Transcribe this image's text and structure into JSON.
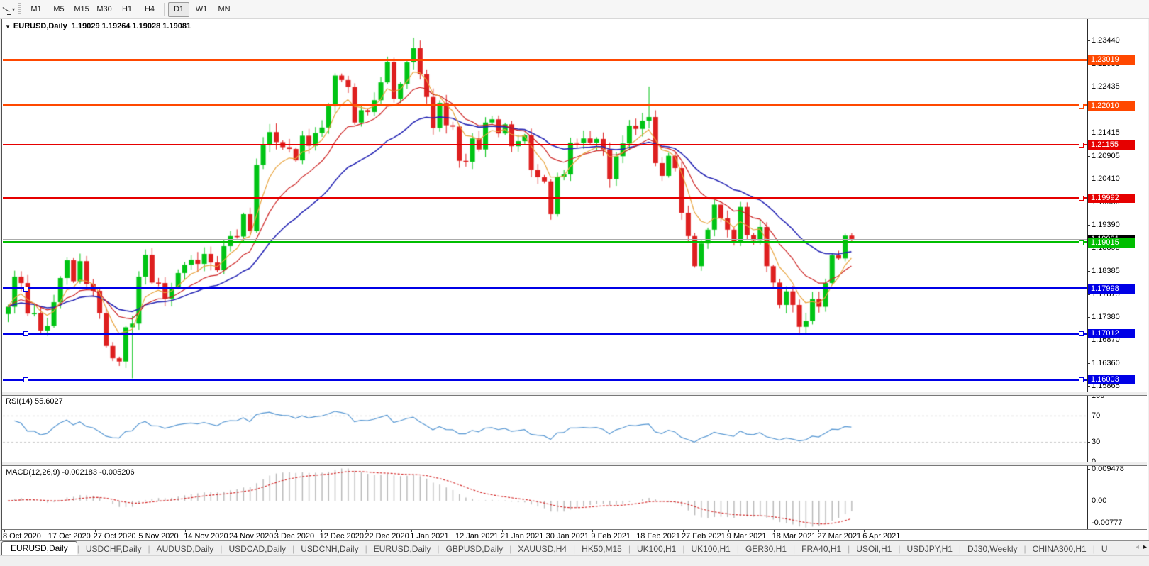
{
  "toolbar": {
    "tool_icon": "crosshair-cursor",
    "timeframes": [
      "M1",
      "M5",
      "M15",
      "M30",
      "H1",
      "H4",
      "D1",
      "W1",
      "MN"
    ],
    "active_timeframe": "D1"
  },
  "chart": {
    "title": "EURUSD,Daily",
    "ohlc": "1.19029 1.19264 1.19028 1.19081",
    "collapse_icon": "▼",
    "price_axis_ticks": [
      "1.23440",
      "1.22930",
      "1.22435",
      "1.21925",
      "1.21415",
      "1.20905",
      "1.20410",
      "1.19900",
      "1.19390",
      "1.18895",
      "1.18385",
      "1.17875",
      "1.17380",
      "1.16870",
      "1.16360",
      "1.15865"
    ],
    "hlines": [
      {
        "label": "1.23019",
        "price": 1.23019,
        "color": "#FF4800",
        "thickness": 3,
        "handles": []
      },
      {
        "label": "1.22010",
        "price": 1.2201,
        "color": "#FF4800",
        "thickness": 3,
        "handles": [
          "right"
        ]
      },
      {
        "label": "1.21155",
        "price": 1.21155,
        "color": "#E60000",
        "thickness": 2,
        "handles": [
          "right"
        ]
      },
      {
        "label": "1.19992",
        "price": 1.19992,
        "color": "#E60000",
        "thickness": 2,
        "handles": [
          "right"
        ]
      },
      {
        "label": "1.19015",
        "price": 1.19015,
        "color": "#00BE00",
        "thickness": 3,
        "handles": [
          "right"
        ]
      },
      {
        "label": "1.17998",
        "price": 1.17998,
        "color": "#0000E6",
        "thickness": 3,
        "handles": [
          "left"
        ]
      },
      {
        "label": "1.17012",
        "price": 1.17012,
        "color": "#0000E6",
        "thickness": 3,
        "handles": [
          "left",
          "right"
        ]
      },
      {
        "label": "1.16003",
        "price": 1.16003,
        "color": "#0000E6",
        "thickness": 3,
        "handles": [
          "left",
          "right"
        ]
      }
    ],
    "bid_line": {
      "label": "1.19081",
      "price": 1.19081,
      "line_color": "#ABABAB",
      "label_bg": "#000000"
    }
  },
  "rsi_panel": {
    "label": "RSI(14) 55.6027",
    "axis_ticks": [
      100,
      70,
      30,
      0
    ],
    "levels": [
      70,
      30
    ],
    "line_color": "#5596D2"
  },
  "macd_panel": {
    "label": "MACD(12,26,9) -0.002183 -0.005206",
    "axis_ticks": [
      {
        "text": "0.009478",
        "value": 0.009478
      },
      {
        "text": "0.00",
        "value": 0
      },
      {
        "text": "-0.00777",
        "value": -0.00777
      }
    ],
    "histogram_color": "#B6B6B6",
    "signal_color": "#D22020"
  },
  "date_axis": [
    "8 Oct 2020",
    "17 Oct 2020",
    "27 Oct 2020",
    "5 Nov 2020",
    "14 Nov 2020",
    "24 Nov 2020",
    "3 Dec 2020",
    "12 Dec 2020",
    "22 Dec 2020",
    "1 Jan 2021",
    "12 Jan 2021",
    "21 Jan 2021",
    "30 Jan 2021",
    "9 Feb 2021",
    "18 Feb 2021",
    "27 Feb 2021",
    "9 Mar 2021",
    "18 Mar 2021",
    "27 Mar 2021",
    "6 Apr 2021"
  ],
  "tabs": {
    "items": [
      "EURUSD,Daily",
      "USDCHF,Daily",
      "AUDUSD,Daily",
      "USDCAD,Daily",
      "USDCNH,Daily",
      "EURUSD,Daily",
      "GBPUSD,Daily",
      "XAUUSD,H4",
      "HK50,M15",
      "UK100,H1",
      "UK100,H1",
      "GER30,H1",
      "FRA40,H1",
      "USOil,H1",
      "USDJPY,H1",
      "DJ30,Weekly",
      "CHINA300,H1",
      "U"
    ],
    "active_index": 0,
    "scroll_left_icon": "◂",
    "scroll_right_icon": "▸"
  },
  "chart_data": {
    "type": "candlestick",
    "symbol": "EURUSD",
    "period": "Daily",
    "up_color": "#00C414",
    "down_color": "#DE1F1F",
    "first_open": 1.1744,
    "closes": [
      1.176,
      1.1826,
      1.1812,
      1.1745,
      1.1746,
      1.1708,
      1.1718,
      1.177,
      1.1823,
      1.1862,
      1.1816,
      1.186,
      1.181,
      1.1795,
      1.1746,
      1.1674,
      1.1647,
      1.164,
      1.1715,
      1.1723,
      1.1826,
      1.1874,
      1.1813,
      1.1812,
      1.1778,
      1.1802,
      1.1834,
      1.1852,
      1.1863,
      1.1854,
      1.1876,
      1.1857,
      1.184,
      1.1893,
      1.1915,
      1.1914,
      1.1963,
      1.1926,
      1.2071,
      1.2115,
      1.2143,
      1.2121,
      1.211,
      1.2106,
      1.2081,
      1.2135,
      1.2113,
      1.2141,
      1.2153,
      1.22,
      1.2267,
      1.2257,
      1.2242,
      1.2164,
      1.2191,
      1.2187,
      1.2213,
      1.2252,
      1.2297,
      1.2216,
      1.2249,
      1.2296,
      1.2327,
      1.227,
      1.222,
      1.2152,
      1.2207,
      1.2158,
      1.2155,
      1.208,
      1.2078,
      1.2129,
      1.2105,
      1.2164,
      1.2171,
      1.214,
      1.216,
      1.2112,
      1.2123,
      1.2136,
      1.206,
      1.2044,
      1.2035,
      1.1963,
      1.2045,
      1.205,
      1.212,
      1.2119,
      1.2129,
      1.212,
      1.2128,
      1.2105,
      1.204,
      1.209,
      1.2118,
      1.2157,
      1.215,
      1.2168,
      1.2176,
      1.2075,
      1.2047,
      1.2091,
      1.2064,
      1.1966,
      1.1915,
      1.1849,
      1.1899,
      1.1929,
      1.1984,
      1.1954,
      1.1929,
      1.1901,
      1.1979,
      1.1917,
      1.1905,
      1.1935,
      1.1849,
      1.1813,
      1.1764,
      1.1794,
      1.1764,
      1.1716,
      1.1729,
      1.1777,
      1.176,
      1.1812,
      1.1873,
      1.1866,
      1.1916,
      1.19081
    ],
    "spikes": [
      {
        "index": 19,
        "low": 1.1603
      },
      {
        "index": 62,
        "high": 1.235
      },
      {
        "index": 98,
        "high": 1.2243
      }
    ],
    "moving_averages": [
      {
        "period": 6,
        "color": "#E8A33C"
      },
      {
        "period": 13,
        "color": "#CC2020"
      },
      {
        "period": 26,
        "color": "#2424B4"
      }
    ],
    "indicators": [
      "RSI(14)",
      "MACD(12,26,9)"
    ]
  }
}
